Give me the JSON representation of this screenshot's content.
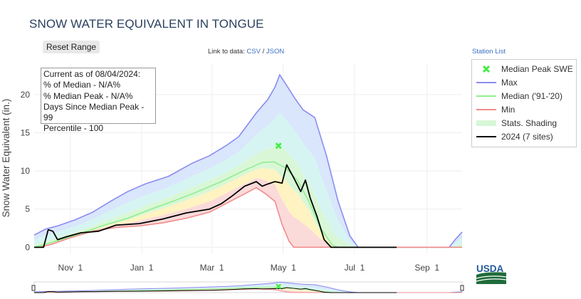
{
  "page": {
    "title": "SNOW WATER EQUIVALENT IN TONGUE",
    "reset_label": "Reset Range",
    "link_prefix": "Link to data:",
    "link_csv": "CSV",
    "link_sep": "/",
    "link_json": "JSON",
    "station_list": "Station List",
    "usda_label": "USDA"
  },
  "info": {
    "line1": "Current as of 08/04/2024:",
    "line2": "% of Median - N/A%",
    "line3": "% Median Peak - N/A%",
    "line4": "Days Since Median Peak - 99",
    "line5": "Percentile - 100"
  },
  "legend": {
    "items": [
      {
        "label": "Median Peak SWE",
        "color": "#44ee44"
      },
      {
        "label": "Max",
        "color": "#8c8cf0"
      },
      {
        "label": "Median ('91-'20)",
        "color": "#8fef8f"
      },
      {
        "label": "Min",
        "color": "#f08c8c"
      },
      {
        "label": "Stats. Shading",
        "color": "#d7f7d7"
      },
      {
        "label": "2024 (7 sites)",
        "color": "#000000"
      }
    ]
  },
  "chart_data": {
    "type": "line",
    "title": "SNOW WATER EQUIVALENT IN TONGUE",
    "ylabel": "Snow Water Equivalent (in.)",
    "xlabel": "",
    "ylim": [
      -0.9,
      24
    ],
    "yticks": [
      0,
      5,
      10,
      15,
      20
    ],
    "xticks": [
      {
        "label": "Nov 1",
        "day": 31
      },
      {
        "label": "Jan 1",
        "day": 92
      },
      {
        "label": "Mar 1",
        "day": 152
      },
      {
        "label": "May 1",
        "day": 213
      },
      {
        "label": "Jul 1",
        "day": 274
      },
      {
        "label": "Sep 1",
        "day": 336
      }
    ],
    "x_range_days": [
      0,
      366
    ],
    "series": [
      {
        "name": "Max",
        "color": "#8c8cf0",
        "points": [
          [
            0,
            1.6
          ],
          [
            10,
            2.4
          ],
          [
            20,
            2.8
          ],
          [
            35,
            3.6
          ],
          [
            50,
            4.6
          ],
          [
            65,
            6.0
          ],
          [
            80,
            7.3
          ],
          [
            95,
            8.3
          ],
          [
            115,
            9.3
          ],
          [
            135,
            11.0
          ],
          [
            150,
            12.0
          ],
          [
            165,
            13.4
          ],
          [
            175,
            14.5
          ],
          [
            190,
            17.6
          ],
          [
            200,
            19.4
          ],
          [
            206,
            21.0
          ],
          [
            210,
            22.6
          ],
          [
            216,
            21.2
          ],
          [
            223,
            19.5
          ],
          [
            230,
            18.0
          ],
          [
            240,
            17.0
          ],
          [
            250,
            12.0
          ],
          [
            260,
            6.0
          ],
          [
            270,
            1.5
          ],
          [
            277,
            0.0
          ],
          [
            355,
            0.0
          ],
          [
            360,
            1.0
          ],
          [
            366,
            2.0
          ]
        ]
      },
      {
        "name": "Median ('91-'20)",
        "color": "#8fef8f",
        "points": [
          [
            0,
            0.0
          ],
          [
            10,
            0.4
          ],
          [
            25,
            1.1
          ],
          [
            40,
            1.8
          ],
          [
            60,
            2.9
          ],
          [
            80,
            3.8
          ],
          [
            100,
            5.0
          ],
          [
            120,
            6.1
          ],
          [
            140,
            7.3
          ],
          [
            160,
            8.6
          ],
          [
            180,
            10.1
          ],
          [
            195,
            11.1
          ],
          [
            205,
            11.2
          ],
          [
            215,
            10.4
          ],
          [
            225,
            8.8
          ],
          [
            235,
            6.0
          ],
          [
            245,
            2.5
          ],
          [
            255,
            0.3
          ],
          [
            260,
            0.0
          ],
          [
            366,
            0.0
          ]
        ]
      },
      {
        "name": "Min",
        "color": "#f08c8c",
        "points": [
          [
            0,
            0.0
          ],
          [
            5,
            0.0
          ],
          [
            15,
            0.4
          ],
          [
            30,
            1.2
          ],
          [
            50,
            2.1
          ],
          [
            70,
            2.6
          ],
          [
            90,
            2.8
          ],
          [
            110,
            3.2
          ],
          [
            130,
            3.8
          ],
          [
            150,
            4.6
          ],
          [
            165,
            5.8
          ],
          [
            180,
            7.0
          ],
          [
            190,
            7.8
          ],
          [
            198,
            7.0
          ],
          [
            206,
            6.0
          ],
          [
            212,
            3.0
          ],
          [
            218,
            0.8
          ],
          [
            222,
            0.0
          ],
          [
            366,
            0.0
          ]
        ]
      },
      {
        "name": "2024 (7 sites)",
        "color": "#000000",
        "points": [
          [
            0,
            0.0
          ],
          [
            8,
            0.0
          ],
          [
            12,
            2.3
          ],
          [
            16,
            2.1
          ],
          [
            20,
            1.0
          ],
          [
            28,
            1.4
          ],
          [
            40,
            1.9
          ],
          [
            55,
            2.1
          ],
          [
            70,
            2.9
          ],
          [
            90,
            3.1
          ],
          [
            110,
            3.7
          ],
          [
            130,
            4.5
          ],
          [
            150,
            5.0
          ],
          [
            160,
            5.7
          ],
          [
            170,
            6.8
          ],
          [
            180,
            8.0
          ],
          [
            190,
            8.6
          ],
          [
            195,
            8.0
          ],
          [
            200,
            8.3
          ],
          [
            206,
            8.6
          ],
          [
            212,
            8.4
          ],
          [
            216,
            10.8
          ],
          [
            222,
            9.1
          ],
          [
            228,
            7.3
          ],
          [
            232,
            8.8
          ],
          [
            236,
            6.5
          ],
          [
            242,
            4.0
          ],
          [
            248,
            1.0
          ],
          [
            254,
            0.0
          ],
          [
            310,
            0.0
          ]
        ]
      }
    ],
    "median_peak": {
      "day": 209,
      "value": 13.3
    }
  }
}
